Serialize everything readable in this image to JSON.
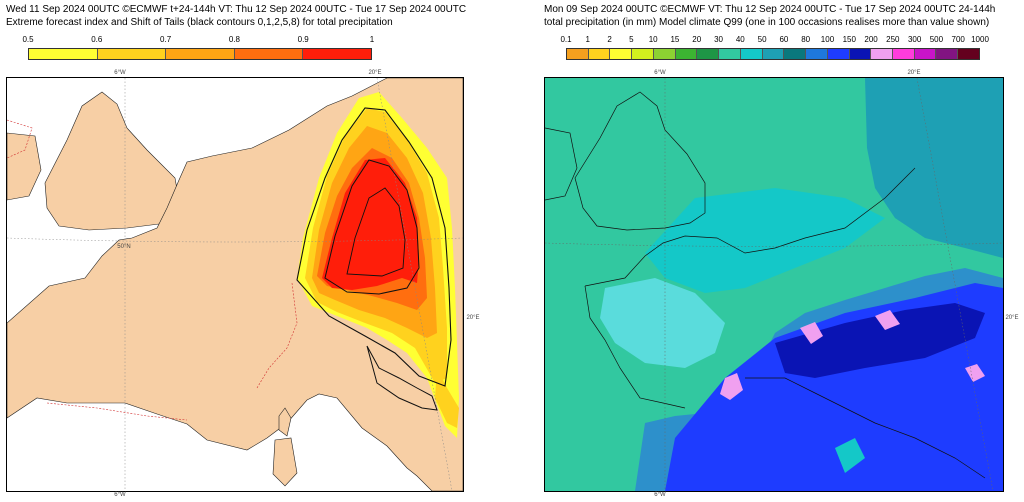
{
  "left": {
    "title1": "Wed 11 Sep 2024 00UTC ©ECMWF t+24-144h  VT: Thu 12 Sep 2024 00UTC - Tue 17 Sep 2024 00UTC",
    "title2": "Extreme forecast index and Shift of Tails (black contours 0,1,2,5,8) for total precipitation",
    "legend": {
      "labels": [
        "0.5",
        "0.6",
        "0.7",
        "0.8",
        "0.9",
        "1"
      ],
      "colors": [
        "#ffff33",
        "#ffd21e",
        "#ffa514",
        "#ff6e0f",
        "#ff1e0a"
      ]
    },
    "coords": {
      "top_6w": "6°W",
      "top_20e": "20°E",
      "lat_50n": "50°N",
      "right_20e": "20°E",
      "bottom_6w": "6°W"
    },
    "colors": {
      "land": "#f7cfa5",
      "sea": "#ffffff"
    }
  },
  "right": {
    "title1": "Mon 09 Sep 2024 00UTC ©ECMWF VT: Thu 12 Sep 2024 00UTC - Tue 17 Sep 2024 00UTC   24-144h",
    "title2": "total precipitation (in mm)  Model climate Q99 (one in 100 occasions realises more than value shown)",
    "legend": {
      "labels": [
        "0.1",
        "1",
        "2",
        "5",
        "10",
        "15",
        "20",
        "30",
        "40",
        "50",
        "60",
        "80",
        "100",
        "150",
        "200",
        "250",
        "300",
        "500",
        "700",
        "1000"
      ],
      "colors": [
        "#f5a01e",
        "#ffd21e",
        "#ffff32",
        "#d2f01e",
        "#8cd232",
        "#3cb432",
        "#1e9646",
        "#32c8a0",
        "#14c8c8",
        "#1ea0b4",
        "#0a787d",
        "#1e78dc",
        "#1e3cff",
        "#0a14b4",
        "#f0a0f0",
        "#ff3cdc",
        "#c814c8",
        "#821482",
        "#64001e"
      ]
    },
    "coords": {
      "top_6w": "6°W",
      "top_20e": "20°E",
      "right_20e": "20°E",
      "bottom_6w": "6°W"
    },
    "colors": {
      "sea": "#1e64e6",
      "base": "#3ab4b4"
    }
  }
}
